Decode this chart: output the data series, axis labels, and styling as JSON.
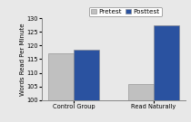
{
  "groups": [
    "Control Group",
    "Read Naturally"
  ],
  "pretest": [
    117,
    106
  ],
  "posttest": [
    118.5,
    127.5
  ],
  "bar_colors": {
    "pretest": "#c0c0c0",
    "posttest": "#2a52a0"
  },
  "legend_labels": [
    "Pretest",
    "Posttest"
  ],
  "ylabel": "Words Read Per Minute",
  "ylim": [
    100,
    130
  ],
  "yticks": [
    100,
    105,
    110,
    115,
    120,
    125,
    130
  ],
  "bar_width": 0.32,
  "axis_fontsize": 5.0,
  "tick_fontsize": 4.8,
  "legend_fontsize": 5.2,
  "background_color": "#e8e8e8",
  "border_color": "#888888"
}
